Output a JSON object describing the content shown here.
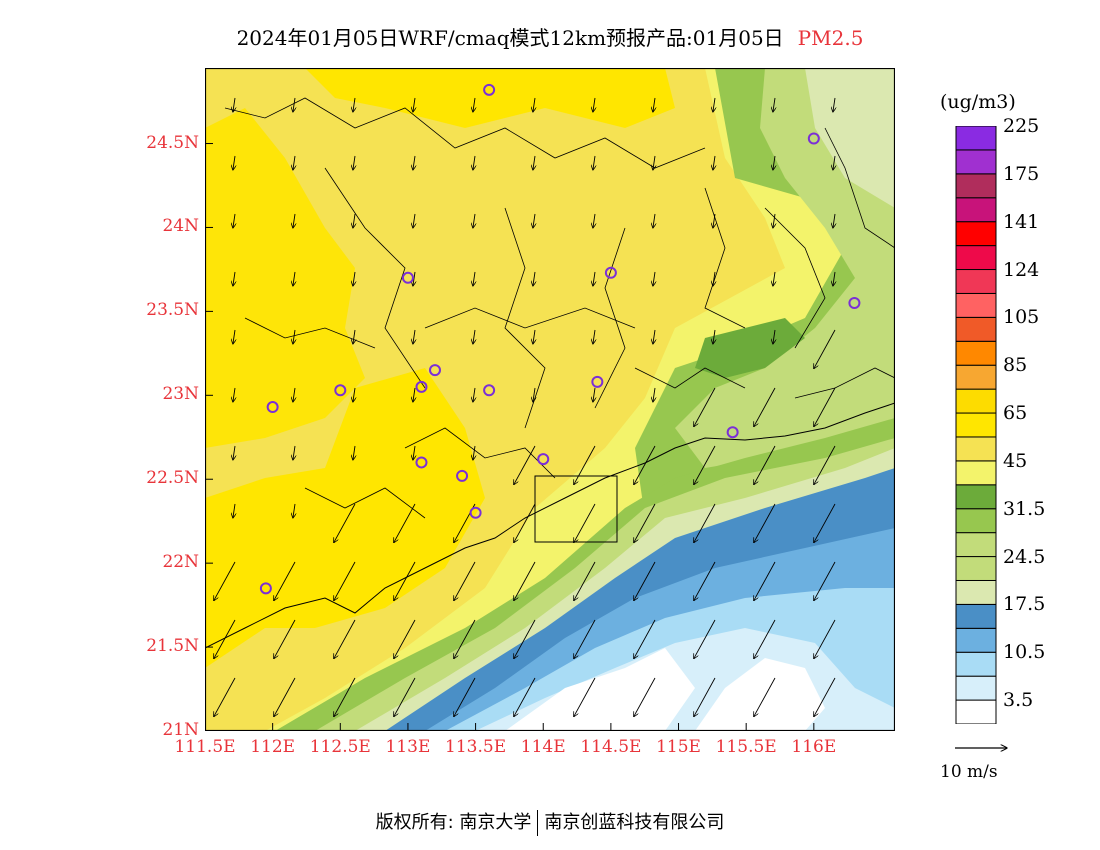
{
  "header": {
    "title": "2024年01月05日WRF/cmaq模式12km预报产品:01月05日",
    "pollutant": "PM2.5"
  },
  "map": {
    "lon_range": [
      111.5,
      116.6
    ],
    "lat_range": [
      21.0,
      24.95
    ],
    "lat_ticks": [
      {
        "value": 21.0,
        "label": "21N"
      },
      {
        "value": 21.5,
        "label": "21.5N"
      },
      {
        "value": 22.0,
        "label": "22N"
      },
      {
        "value": 22.5,
        "label": "22.5N"
      },
      {
        "value": 23.0,
        "label": "23N"
      },
      {
        "value": 23.5,
        "label": "23.5N"
      },
      {
        "value": 24.0,
        "label": "24N"
      },
      {
        "value": 24.5,
        "label": "24.5N"
      }
    ],
    "lon_ticks": [
      {
        "value": 111.5,
        "label": "111.5E"
      },
      {
        "value": 112.0,
        "label": "112E"
      },
      {
        "value": 112.5,
        "label": "112.5E"
      },
      {
        "value": 113.0,
        "label": "113E"
      },
      {
        "value": 113.5,
        "label": "113.5E"
      },
      {
        "value": 114.0,
        "label": "114E"
      },
      {
        "value": 114.5,
        "label": "114.5E"
      },
      {
        "value": 115.0,
        "label": "115E"
      },
      {
        "value": 115.5,
        "label": "115.5E"
      },
      {
        "value": 116.0,
        "label": "116E"
      }
    ],
    "stations": [
      {
        "lon": 113.6,
        "lat": 24.82
      },
      {
        "lon": 116.0,
        "lat": 24.53
      },
      {
        "lon": 113.0,
        "lat": 23.7
      },
      {
        "lon": 114.5,
        "lat": 23.73
      },
      {
        "lon": 116.3,
        "lat": 23.55
      },
      {
        "lon": 112.0,
        "lat": 22.93
      },
      {
        "lon": 112.5,
        "lat": 23.03
      },
      {
        "lon": 113.1,
        "lat": 23.05
      },
      {
        "lon": 113.2,
        "lat": 23.15
      },
      {
        "lon": 113.6,
        "lat": 23.03
      },
      {
        "lon": 114.4,
        "lat": 23.08
      },
      {
        "lon": 115.4,
        "lat": 22.78
      },
      {
        "lon": 113.1,
        "lat": 22.6
      },
      {
        "lon": 113.4,
        "lat": 22.52
      },
      {
        "lon": 114.0,
        "lat": 22.62
      },
      {
        "lon": 113.5,
        "lat": 22.3
      },
      {
        "lon": 111.95,
        "lat": 21.85
      }
    ],
    "colors": {
      "land_high": "#ffe600",
      "land_mid": "#f5e253",
      "land_low": "#f3f36b",
      "green_dark": "#6cab3a",
      "green_mid": "#97c74f",
      "green_light": "#c2dc7a",
      "green_pale": "#dbe8b0",
      "blue_dark": "#4a8fc6",
      "blue_mid": "#6cb0e0",
      "blue_light": "#a9dcf5",
      "blue_pale": "#d7effa",
      "station": "#7b2fd6"
    }
  },
  "legend": {
    "unit": "(ug/m3)",
    "colors": [
      "#ffffff",
      "#d7effa",
      "#a9dcf5",
      "#6cb0e0",
      "#4a8fc6",
      "#dbe8b0",
      "#c2dc7a",
      "#c2dc7a",
      "#97c74f",
      "#6cab3a",
      "#f3f36b",
      "#f5e253",
      "#ffe600",
      "#fddc00",
      "#f7a731",
      "#ff8800",
      "#f05a28",
      "#ff6262",
      "#f03756",
      "#ee0a4a",
      "#ff0000",
      "#c8137a",
      "#b02d5c",
      "#a030d0",
      "#8a2be2"
    ],
    "labels": [
      "3.5",
      "10.5",
      "17.5",
      "24.5",
      "31.5",
      "45",
      "65",
      "85",
      "105",
      "124",
      "141",
      "175",
      "225"
    ]
  },
  "wind_reference": {
    "label": "10 m/s"
  },
  "footer": {
    "copyright": "版权所有: 南京大学",
    "company": "南京创蓝科技有限公司"
  }
}
